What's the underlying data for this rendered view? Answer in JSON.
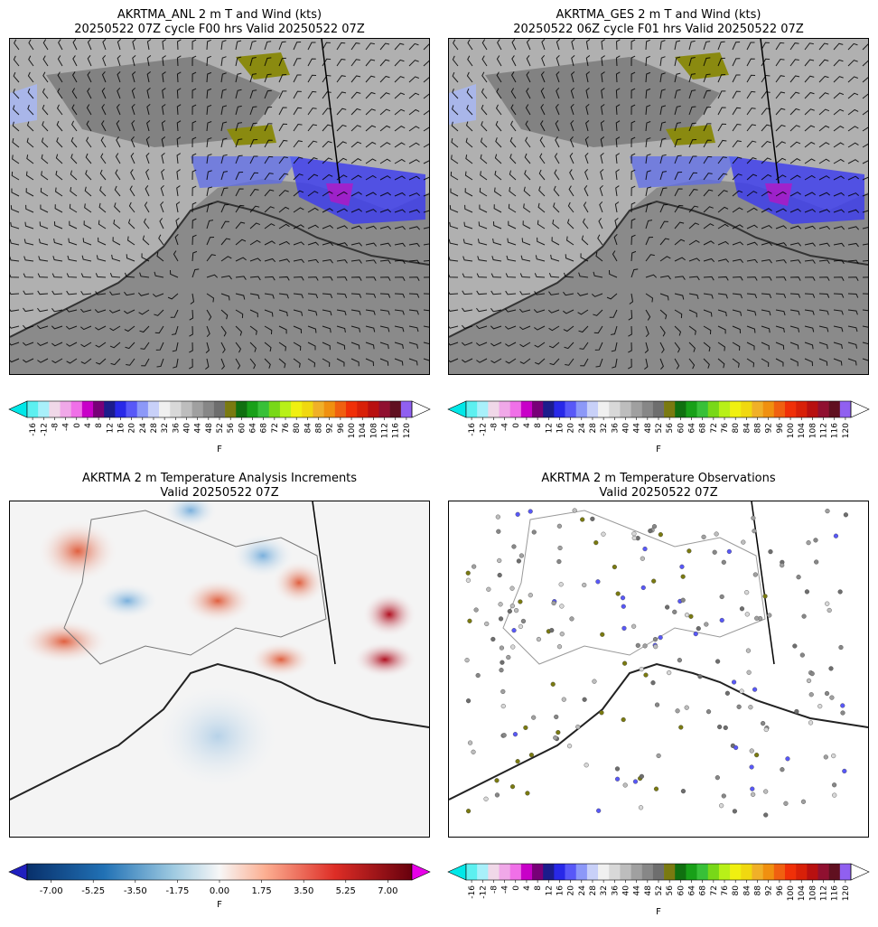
{
  "panels": {
    "anl": {
      "title_line1": "AKRTMA_ANL 2 m T and Wind (kts)",
      "title_line2": "20250522 07Z cycle F00 hrs Valid 20250522 07Z"
    },
    "ges": {
      "title_line1": "AKRTMA_GES 2 m T and Wind (kts)",
      "title_line2": "20250522 06Z cycle F01 hrs Valid 20250522 07Z"
    },
    "inc": {
      "title_line1": "AKRTMA 2 m Temperature Analysis Increments",
      "title_line2": "Valid 20250522 07Z"
    },
    "obs": {
      "title_line1": "AKRTMA 2 m Temperature Observations",
      "title_line2": "Valid 20250522 07Z"
    }
  },
  "temp_colorbar": {
    "unit": "F",
    "ticks": [
      "-16",
      "-12",
      "-8",
      "-4",
      "0",
      "4",
      "8",
      "12",
      "16",
      "20",
      "24",
      "28",
      "32",
      "36",
      "40",
      "44",
      "48",
      "52",
      "56",
      "60",
      "64",
      "68",
      "72",
      "76",
      "80",
      "84",
      "88",
      "92",
      "96",
      "100",
      "104",
      "108",
      "112",
      "116",
      "120"
    ],
    "colors": [
      "#5cf0f0",
      "#a8f0fa",
      "#f0d8e8",
      "#f0a8e8",
      "#f070e8",
      "#c800c8",
      "#780078",
      "#1c1c8c",
      "#2828e8",
      "#5858f8",
      "#8c98f8",
      "#c8d0f8",
      "#f0f0f0",
      "#d8d8d8",
      "#bdbdbd",
      "#a0a0a0",
      "#878787",
      "#6e6e6e",
      "#7a7a10",
      "#107010",
      "#18a018",
      "#38c038",
      "#78d818",
      "#b8f018",
      "#f0f010",
      "#f0d810",
      "#f0b028",
      "#f09010",
      "#f06010",
      "#f03008",
      "#d82008",
      "#b81010",
      "#901030",
      "#601020",
      "#9060f0"
    ],
    "extend_low": "#00e8e8",
    "extend_high": "#ffffff"
  },
  "inc_colorbar": {
    "unit": "F",
    "ticks": [
      "-7.00",
      "-5.25",
      "-3.50",
      "-1.75",
      "0.00",
      "1.75",
      "3.50",
      "5.25",
      "7.00"
    ],
    "range": [
      -8,
      8
    ],
    "extend_low": "#2020c0",
    "extend_high": "#e800e8"
  }
}
